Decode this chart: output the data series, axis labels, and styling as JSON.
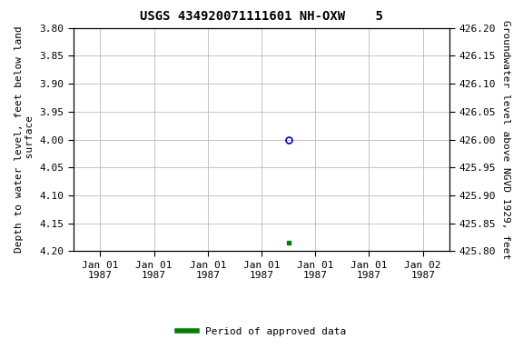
{
  "title": "USGS 434920071111601 NH-OXW    5",
  "left_ylabel": "Depth to water level, feet below land\n surface",
  "right_ylabel": "Groundwater level above NGVD 1929, feet",
  "ylim_left": [
    3.8,
    4.2
  ],
  "ylim_right": [
    425.8,
    426.2
  ],
  "y_ticks_left": [
    3.8,
    3.85,
    3.9,
    3.95,
    4.0,
    4.05,
    4.1,
    4.15,
    4.2
  ],
  "y_ticks_right": [
    425.8,
    425.85,
    425.9,
    425.95,
    426.0,
    426.05,
    426.1,
    426.15,
    426.2
  ],
  "data_point_x_days": 3.5,
  "data_point_y": 4.0,
  "data_point2_x_days": 3.5,
  "data_point2_y": 4.185,
  "point_color": "#0000cc",
  "point2_color": "#008000",
  "background_color": "#ffffff",
  "grid_color": "#bbbbbb",
  "title_fontsize": 10,
  "axis_label_fontsize": 8,
  "tick_fontsize": 8,
  "legend_label": "Period of approved data",
  "legend_color": "#008000",
  "x_tick_labels": [
    "Jan 01\n1987",
    "Jan 01\n1987",
    "Jan 01\n1987",
    "Jan 01\n1987",
    "Jan 01\n1987",
    "Jan 01\n1987",
    "Jan 02\n1987"
  ],
  "x_tick_positions": [
    0.0,
    1.0,
    2.0,
    3.0,
    4.0,
    5.0,
    6.0
  ],
  "xlim": [
    -0.5,
    6.5
  ]
}
